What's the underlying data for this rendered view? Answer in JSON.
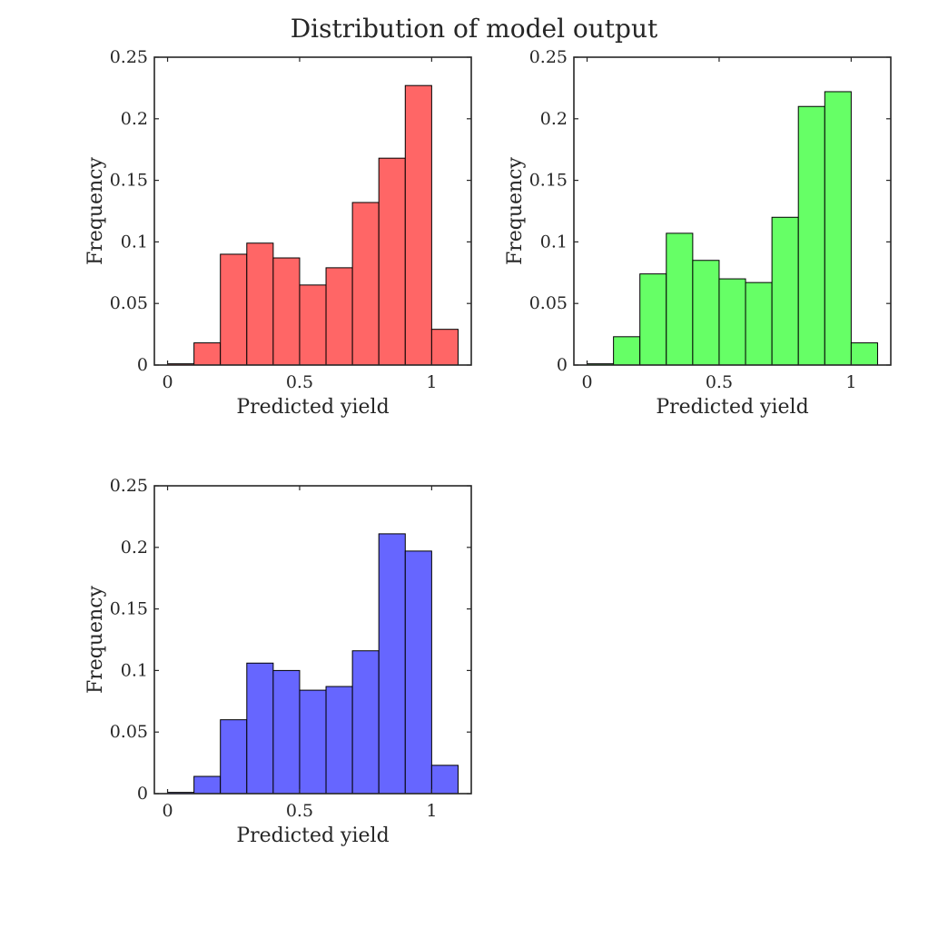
{
  "title": "Distribution of model output",
  "chart_data": [
    {
      "type": "bar",
      "title": "",
      "xlabel": "Predicted yield",
      "ylabel": "Frequency",
      "color": "#ff6666",
      "xlim": [
        -0.05,
        1.15
      ],
      "ylim": [
        0,
        0.25
      ],
      "xticks": [
        0,
        0.5,
        1
      ],
      "xtick_labels": [
        "0",
        "0.5",
        "1"
      ],
      "yticks": [
        0,
        0.05,
        0.1,
        0.15,
        0.2,
        0.25
      ],
      "ytick_labels": [
        "0",
        "0.05",
        "0.1",
        "0.15",
        "0.2",
        "0.25"
      ],
      "bin_edges": [
        0,
        0.1,
        0.2,
        0.3,
        0.4,
        0.5,
        0.6,
        0.7,
        0.8,
        0.9,
        1.0,
        1.1
      ],
      "values": [
        0.001,
        0.018,
        0.09,
        0.099,
        0.087,
        0.065,
        0.079,
        0.132,
        0.168,
        0.227,
        0.029
      ]
    },
    {
      "type": "bar",
      "title": "",
      "xlabel": "Predicted yield",
      "ylabel": "Frequency",
      "color": "#66ff66",
      "xlim": [
        -0.05,
        1.15
      ],
      "ylim": [
        0,
        0.25
      ],
      "xticks": [
        0,
        0.5,
        1
      ],
      "xtick_labels": [
        "0",
        "0.5",
        "1"
      ],
      "yticks": [
        0,
        0.05,
        0.1,
        0.15,
        0.2,
        0.25
      ],
      "ytick_labels": [
        "0",
        "0.05",
        "0.1",
        "0.15",
        "0.2",
        "0.25"
      ],
      "bin_edges": [
        0,
        0.1,
        0.2,
        0.3,
        0.4,
        0.5,
        0.6,
        0.7,
        0.8,
        0.9,
        1.0,
        1.1
      ],
      "values": [
        0.001,
        0.023,
        0.074,
        0.107,
        0.085,
        0.07,
        0.067,
        0.12,
        0.21,
        0.222,
        0.018
      ]
    },
    {
      "type": "bar",
      "title": "",
      "xlabel": "Predicted yield",
      "ylabel": "Frequency",
      "color": "#6666ff",
      "xlim": [
        -0.05,
        1.15
      ],
      "ylim": [
        0,
        0.25
      ],
      "xticks": [
        0,
        0.5,
        1
      ],
      "xtick_labels": [
        "0",
        "0.5",
        "1"
      ],
      "yticks": [
        0,
        0.05,
        0.1,
        0.15,
        0.2,
        0.25
      ],
      "ytick_labels": [
        "0",
        "0.05",
        "0.1",
        "0.15",
        "0.2",
        "0.25"
      ],
      "bin_edges": [
        0,
        0.1,
        0.2,
        0.3,
        0.4,
        0.5,
        0.6,
        0.7,
        0.8,
        0.9,
        1.0,
        1.1
      ],
      "values": [
        0.001,
        0.014,
        0.06,
        0.106,
        0.1,
        0.084,
        0.087,
        0.116,
        0.211,
        0.197,
        0.023
      ]
    }
  ]
}
